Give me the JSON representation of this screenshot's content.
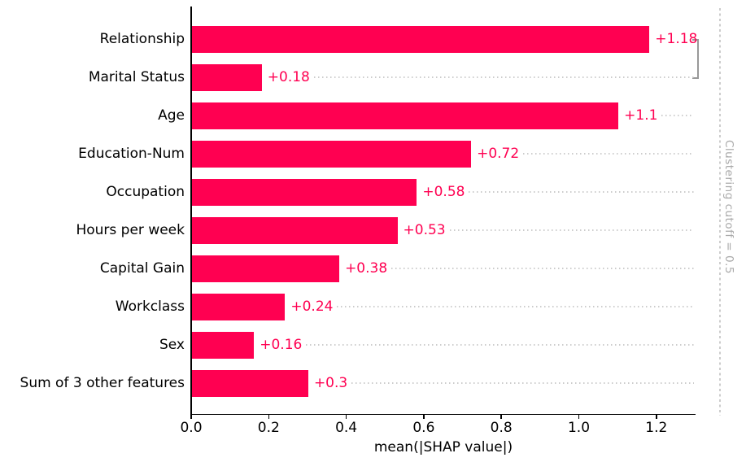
{
  "chart_data": {
    "type": "bar",
    "orientation": "horizontal",
    "title": "",
    "xlabel": "mean(|SHAP value|)",
    "ylabel": "",
    "categories": [
      "Relationship",
      "Marital Status",
      "Age",
      "Education-Num",
      "Occupation",
      "Hours per week",
      "Capital Gain",
      "Workclass",
      "Sex",
      "Sum of 3 other features"
    ],
    "values": [
      1.18,
      0.18,
      1.1,
      0.72,
      0.58,
      0.53,
      0.38,
      0.24,
      0.16,
      0.3
    ],
    "value_labels": [
      "+1.18",
      "+0.18",
      "+1.1",
      "+0.72",
      "+0.58",
      "+0.53",
      "+0.38",
      "+0.24",
      "+0.16",
      "+0.3"
    ],
    "xlim": [
      0,
      1.3
    ],
    "xticks": [
      0.0,
      0.2,
      0.4,
      0.6,
      0.8,
      1.0,
      1.2
    ],
    "xtick_labels": [
      "0.0",
      "0.2",
      "0.4",
      "0.6",
      "0.8",
      "1.0",
      "1.2"
    ],
    "grid": "off",
    "legend": "none",
    "clustering": {
      "cutoff_label": "Clustering cutoff = 0.5",
      "cutoff_value": 0.5,
      "bracket_rows": [
        0,
        1
      ],
      "bracketed_categories": [
        "Relationship",
        "Marital Status"
      ]
    },
    "colors": {
      "bar": "#ff0051",
      "value_label": "#ff0051",
      "leader_dots": "#cccccc",
      "cutoff_line": "#cccccc",
      "cutoff_text": "#aaaaaa",
      "bracket": "#999999",
      "axis": "#000000",
      "background": "#ffffff"
    }
  }
}
